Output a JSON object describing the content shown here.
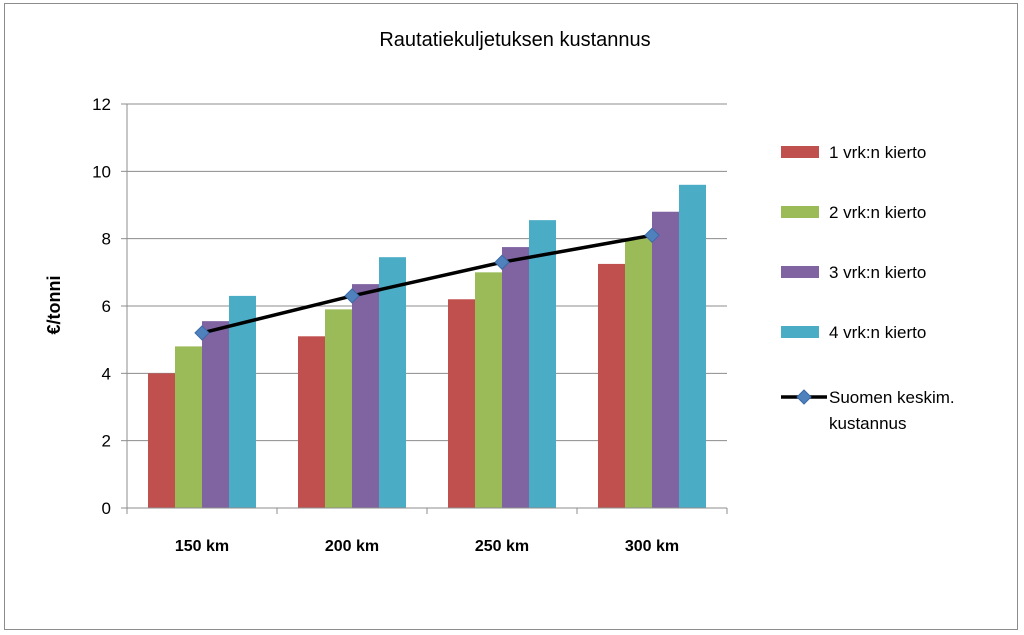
{
  "chart_data": {
    "type": "bar",
    "title": "Rautatiekuljetuksen kustannus",
    "xlabel": "",
    "ylabel": "€/tonni",
    "ylim": [
      0,
      12
    ],
    "yticks": [
      0,
      2,
      4,
      6,
      8,
      10,
      12
    ],
    "grid": true,
    "legend_position": "right",
    "categories": [
      "150 km",
      "200 km",
      "250 km",
      "300 km"
    ],
    "series": [
      {
        "name": "1 vrk:n kierto",
        "type": "bar",
        "color": "#c0504d",
        "values": [
          4.0,
          5.1,
          6.2,
          7.25
        ]
      },
      {
        "name": "2 vrk:n kierto",
        "type": "bar",
        "color": "#9bbb59",
        "values": [
          4.8,
          5.9,
          7.0,
          8.0
        ]
      },
      {
        "name": "3 vrk:n kierto",
        "type": "bar",
        "color": "#8064a2",
        "values": [
          5.55,
          6.65,
          7.75,
          8.8
        ]
      },
      {
        "name": "4 vrk:n kierto",
        "type": "bar",
        "color": "#4bacc6",
        "values": [
          6.3,
          7.45,
          8.55,
          9.6
        ]
      }
    ],
    "line_series": {
      "name_lines": [
        "Suomen keskim.",
        "kustannus"
      ],
      "type": "line",
      "color": "#000000",
      "marker_color": "#4f81bd",
      "values": [
        5.2,
        6.3,
        7.3,
        8.1
      ]
    }
  }
}
